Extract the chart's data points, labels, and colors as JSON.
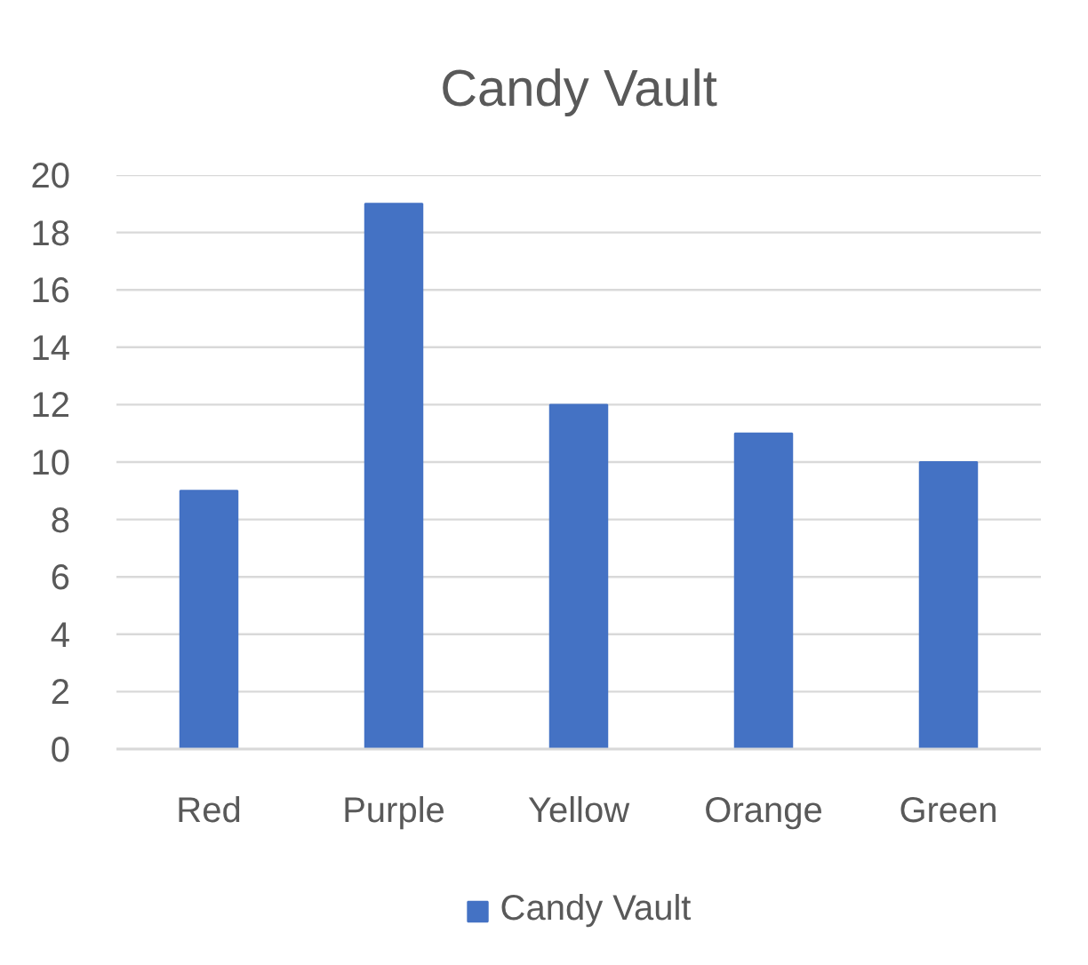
{
  "chart_data": {
    "type": "bar",
    "title": "Candy Vault",
    "categories": [
      "Red",
      "Purple",
      "Yellow",
      "Orange",
      "Green"
    ],
    "series": [
      {
        "name": "Candy Vault",
        "color": "#4472c4",
        "values": [
          9,
          19,
          12,
          11,
          10
        ]
      }
    ],
    "ylim": [
      0,
      20
    ],
    "yticks": [
      0,
      2,
      4,
      6,
      8,
      10,
      12,
      14,
      16,
      18,
      20
    ],
    "grid": "y",
    "legend": "bottom"
  }
}
